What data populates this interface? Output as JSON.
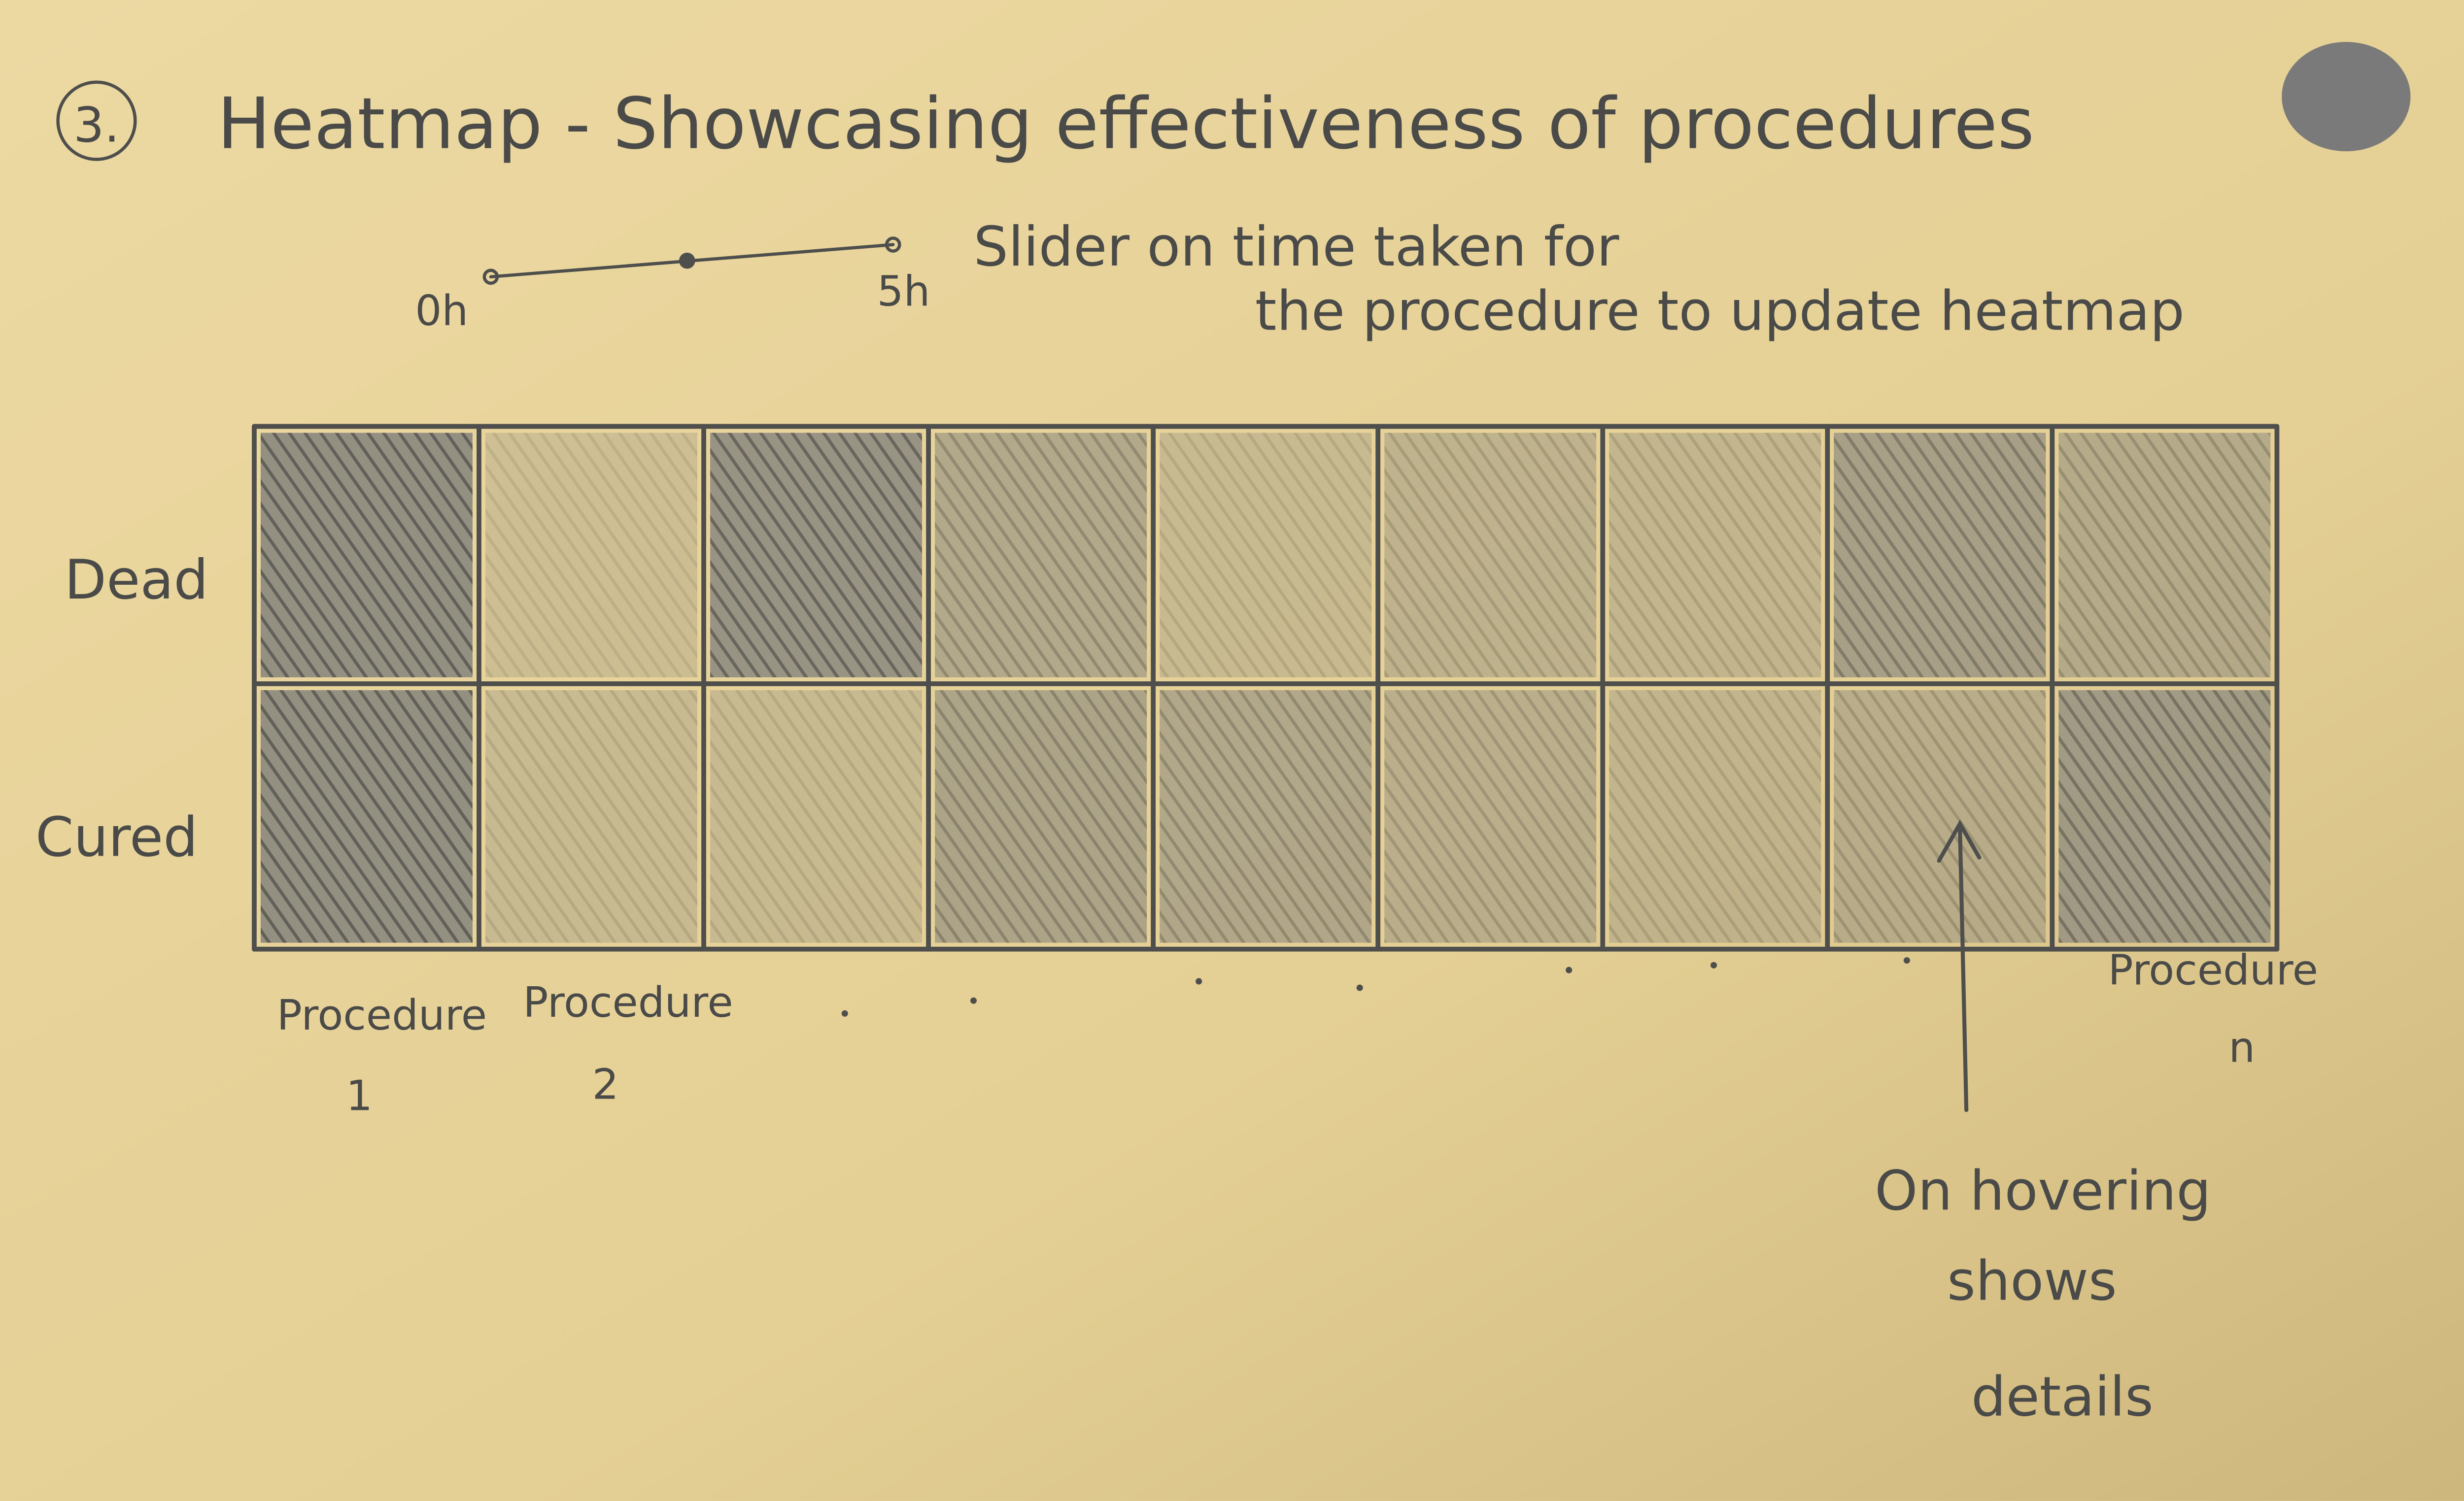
{
  "header": {
    "number": "3.",
    "title": "Heatmap - Showcasing effectiveness of procedures"
  },
  "slider": {
    "min_label": "0h",
    "max_label": "5h",
    "note": [
      "Slider on time taken for",
      "the procedure to update heatmap"
    ]
  },
  "heatmap": {
    "rows": [
      "Dead",
      "Cured"
    ],
    "columns": [
      {
        "name": "Procedure",
        "index": "1"
      },
      {
        "name": "Procedure",
        "index": "2"
      },
      {
        "name": "Procedure",
        "index": "n"
      }
    ]
  },
  "annotation": [
    "On hovering",
    "shows",
    "details"
  ]
}
